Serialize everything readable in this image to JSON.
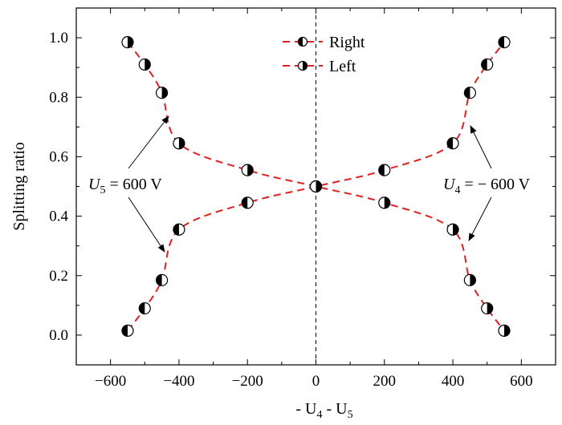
{
  "chart_data": {
    "type": "scatter",
    "xlabel_parts": [
      "- U",
      "4",
      " - U",
      "5"
    ],
    "ylabel": "Splitting ratio",
    "xlim": [
      -700,
      700
    ],
    "ylim": [
      -0.1,
      1.1
    ],
    "xticks": [
      -600,
      -400,
      -200,
      0,
      200,
      400,
      600
    ],
    "xtick_labels": [
      "−600",
      "−400",
      "−200",
      "0",
      "200",
      "400",
      "600"
    ],
    "yticks": [
      0.0,
      0.2,
      0.4,
      0.6,
      0.8,
      1.0
    ],
    "ytick_labels": [
      "0.0",
      "0.2",
      "0.4",
      "0.6",
      "0.8",
      "1.0"
    ],
    "grid": false,
    "legend_position": "top-center",
    "line_color": "#e02020",
    "line_style": "dashed",
    "vertical_reference_x": 0,
    "series": [
      {
        "name": "Right",
        "marker": "circle-left-filled",
        "x": [
          -550,
          -500,
          -450,
          -400,
          -200,
          0,
          200,
          400,
          450,
          500,
          550
        ],
        "y": [
          0.015,
          0.09,
          0.185,
          0.355,
          0.445,
          0.5,
          0.555,
          0.645,
          0.815,
          0.91,
          0.985
        ]
      },
      {
        "name": "Left",
        "marker": "circle-right-filled",
        "x": [
          -550,
          -500,
          -450,
          -400,
          -200,
          0,
          200,
          400,
          450,
          500,
          550
        ],
        "y": [
          0.985,
          0.91,
          0.815,
          0.645,
          0.555,
          0.5,
          0.445,
          0.355,
          0.185,
          0.09,
          0.015
        ]
      }
    ],
    "annotations": [
      {
        "parts": [
          "U",
          "5",
          " = 600 V"
        ],
        "side": "left"
      },
      {
        "parts": [
          "U",
          "4",
          " = − 600 V"
        ],
        "side": "right"
      }
    ]
  }
}
